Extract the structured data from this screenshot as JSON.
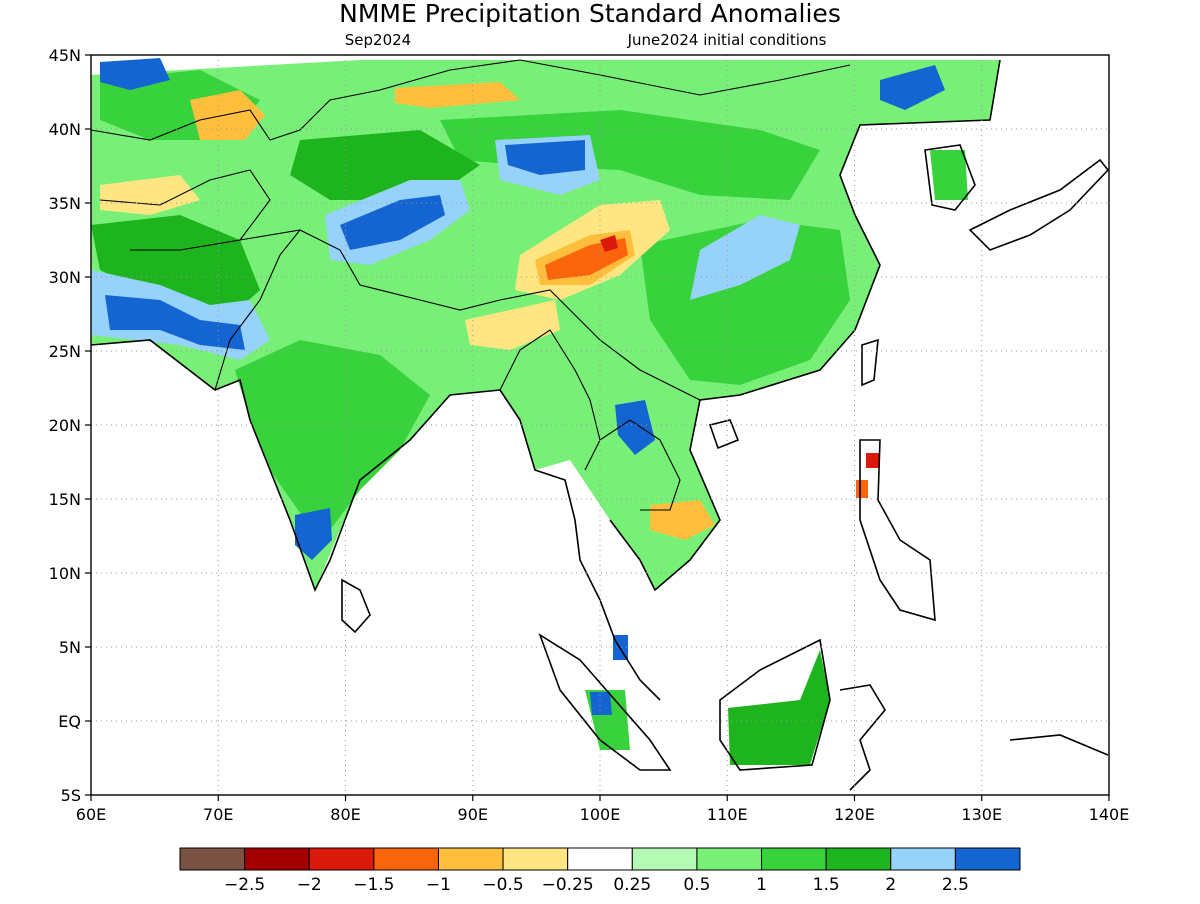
{
  "header": {
    "title": "NMME Precipitation Standard Anomalies",
    "target_month": "Sep2024",
    "initial_conditions": "June2024 initial conditions"
  },
  "map": {
    "lon_range": [
      60,
      140
    ],
    "lat_range": [
      -5,
      45
    ],
    "x_tick_labels": [
      "60E",
      "70E",
      "80E",
      "90E",
      "100E",
      "110E",
      "120E",
      "130E",
      "140E"
    ],
    "y_tick_labels": [
      "5S",
      "EQ",
      "5N",
      "10N",
      "15N",
      "20N",
      "25N",
      "30N",
      "35N",
      "40N",
      "45N"
    ],
    "grid": "dotted",
    "anomaly_fields": [
      {
        "region": "Central India",
        "lon": [
          73,
          86
        ],
        "lat": [
          16,
          26
        ],
        "level": "1 to 1.5"
      },
      {
        "region": "Western Tibetan Plateau",
        "lon": [
          80,
          92
        ],
        "lat": [
          29,
          35
        ],
        "level": "2.5+"
      },
      {
        "region": "Eastern Tibetan Plateau",
        "lon": [
          98,
          104
        ],
        "lat": [
          29,
          33
        ],
        "level": "-1.5 to -1"
      },
      {
        "region": "Southern China",
        "lon": [
          104,
          120
        ],
        "lat": [
          22,
          35
        ],
        "level": "1 to 1.5"
      },
      {
        "region": "Laos",
        "lon": [
          101,
          106
        ],
        "lat": [
          17,
          21
        ],
        "level": "2.5+"
      },
      {
        "region": "Cambodia / South Vietnam",
        "lon": [
          104,
          108
        ],
        "lat": [
          12,
          15
        ],
        "level": "-1 to -0.5"
      },
      {
        "region": "Southern Pakistan",
        "lon": [
          60,
          70
        ],
        "lat": [
          25,
          29
        ],
        "level": "2.5+"
      },
      {
        "region": "Mongolia",
        "lon": [
          120,
          127
        ],
        "lat": [
          40,
          46
        ],
        "level": "2.5+"
      },
      {
        "region": "Borneo",
        "lon": [
          110,
          118
        ],
        "lat": [
          -3,
          5
        ],
        "level": "1.5 to 2"
      },
      {
        "region": "Central Asia",
        "lon": [
          60,
          72
        ],
        "lat": [
          40,
          46
        ],
        "level": "1 to 1.5"
      },
      {
        "region": "Kyrgyzstan",
        "lon": [
          68,
          76
        ],
        "lat": [
          39,
          43
        ],
        "level": "-1 to -0.5"
      },
      {
        "region": "Afghanistan",
        "lon": [
          62,
          70
        ],
        "lat": [
          34,
          37
        ],
        "level": "-0.5 to -0.25"
      },
      {
        "region": "Bangladesh / Assam",
        "lon": [
          88,
          96
        ],
        "lat": [
          24,
          28
        ],
        "level": "-0.5 to -0.25"
      },
      {
        "region": "Northern Luzon",
        "lon": [
          120,
          122
        ],
        "lat": [
          15,
          18
        ],
        "level": "-1.5 to -1"
      }
    ]
  },
  "legend": {
    "levels": [
      "-2.5",
      "-2",
      "-1.5",
      "-1",
      "-0.5",
      "-0.25",
      "0.25",
      "0.5",
      "1",
      "1.5",
      "2",
      "2.5"
    ],
    "colors": [
      "#7a5244",
      "#a50000",
      "#dc1a0c",
      "#fa640a",
      "#ffbe3c",
      "#ffe682",
      "#ffffff",
      "#b4fab4",
      "#78f078",
      "#37d23c",
      "#1eb41e",
      "#96d2fa",
      "#1464d2"
    ]
  }
}
